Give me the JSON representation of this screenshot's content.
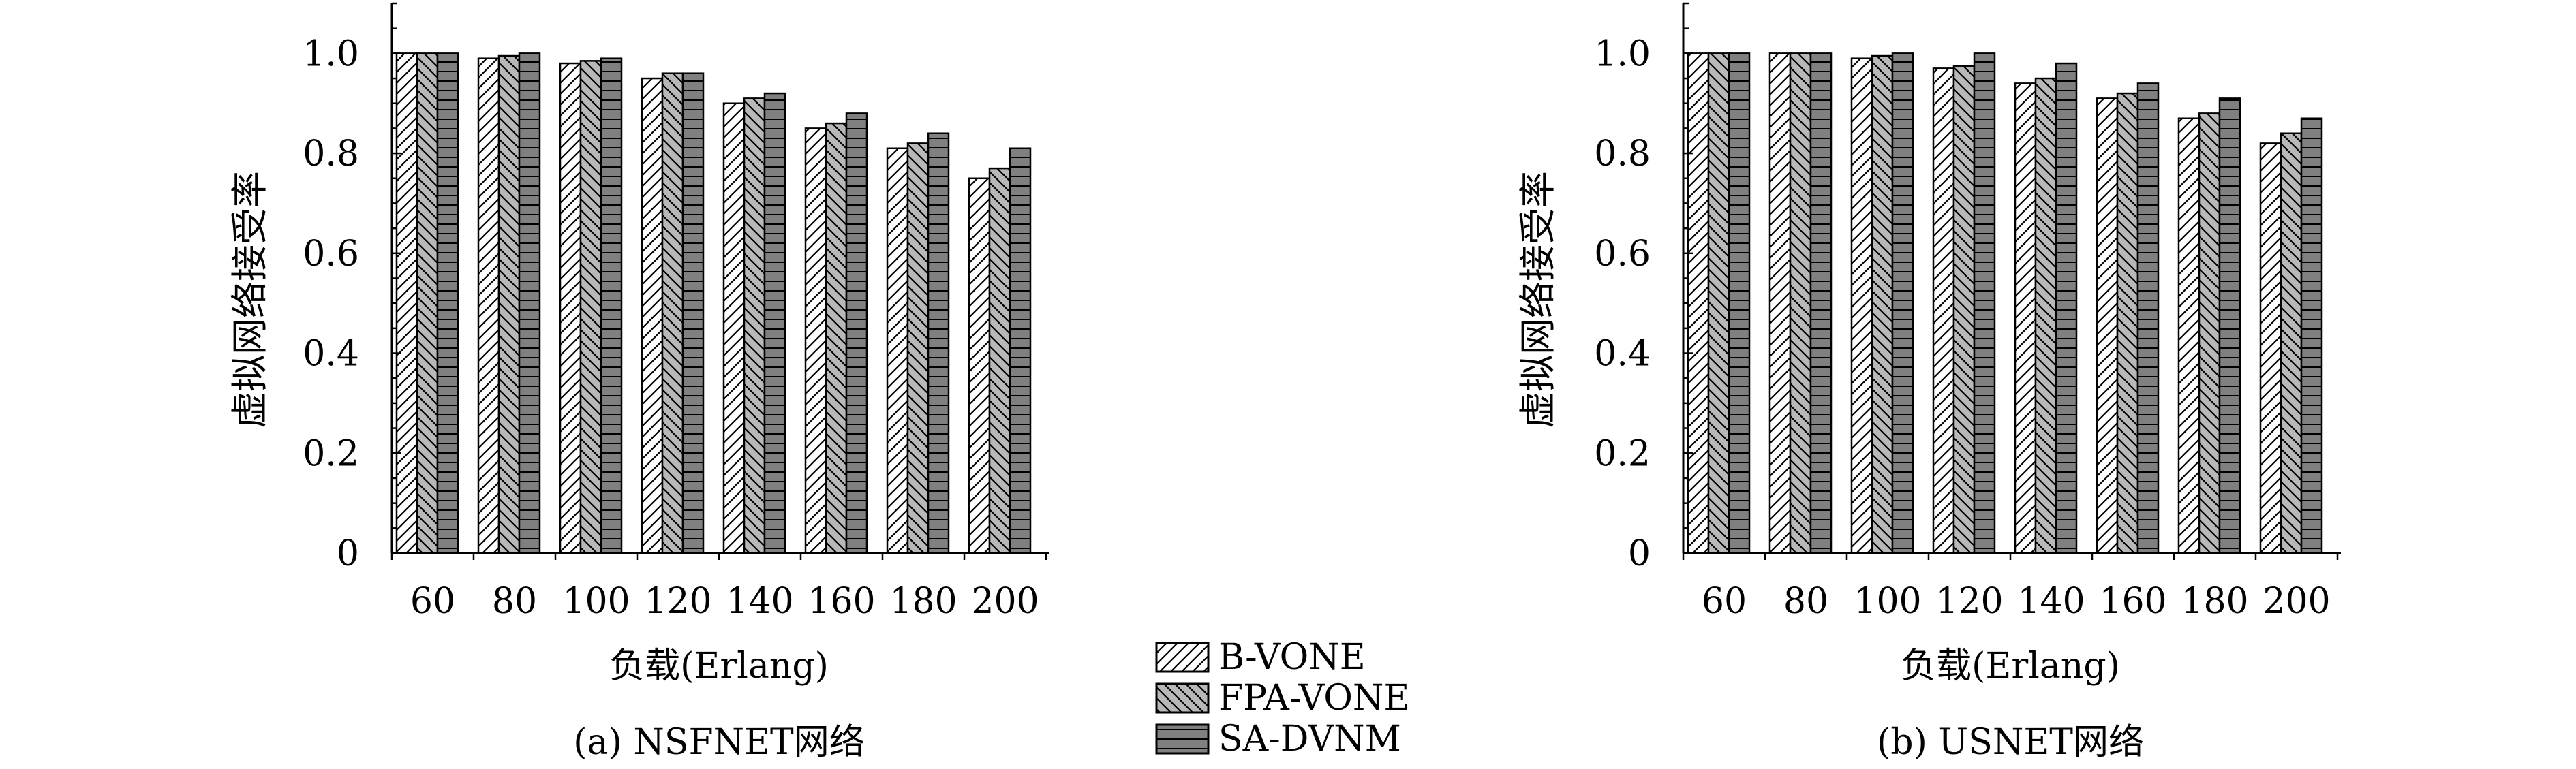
{
  "legend": {
    "entries": [
      "B-VONE",
      "FPA-VONE",
      "SA-DVNM"
    ],
    "placement": "bottom-center"
  },
  "chart_data": [
    {
      "type": "bar",
      "caption": "(a) NSFNET网络",
      "xlabel": "负载(Erlang)",
      "ylabel": "虚拟网络接受率",
      "categories": [
        "60",
        "80",
        "100",
        "120",
        "140",
        "160",
        "180",
        "200"
      ],
      "yticks": [
        "0",
        "0.2",
        "0.4",
        "0.6",
        "0.8",
        "1.0"
      ],
      "ylim": [
        0,
        1.1
      ],
      "grid": false,
      "series": [
        {
          "name": "B-VONE",
          "values": [
            1.0,
            0.99,
            0.98,
            0.95,
            0.9,
            0.85,
            0.81,
            0.75
          ]
        },
        {
          "name": "FPA-VONE",
          "values": [
            1.0,
            0.995,
            0.985,
            0.96,
            0.91,
            0.86,
            0.82,
            0.77
          ]
        },
        {
          "name": "SA-DVNM",
          "values": [
            1.0,
            1.0,
            0.99,
            0.96,
            0.92,
            0.88,
            0.84,
            0.81
          ]
        }
      ]
    },
    {
      "type": "bar",
      "caption": "(b) USNET网络",
      "xlabel": "负载(Erlang)",
      "ylabel": "虚拟网络接受率",
      "categories": [
        "60",
        "80",
        "100",
        "120",
        "140",
        "160",
        "180",
        "200"
      ],
      "yticks": [
        "0",
        "0.2",
        "0.4",
        "0.6",
        "0.8",
        "1.0"
      ],
      "ylim": [
        0,
        1.1
      ],
      "grid": false,
      "series": [
        {
          "name": "B-VONE",
          "values": [
            1.0,
            1.0,
            0.99,
            0.97,
            0.94,
            0.91,
            0.87,
            0.82
          ]
        },
        {
          "name": "FPA-VONE",
          "values": [
            1.0,
            1.0,
            0.995,
            0.975,
            0.95,
            0.92,
            0.88,
            0.84
          ]
        },
        {
          "name": "SA-DVNM",
          "values": [
            1.0,
            1.0,
            1.0,
            1.0,
            0.98,
            0.94,
            0.91,
            0.87
          ]
        }
      ]
    }
  ]
}
